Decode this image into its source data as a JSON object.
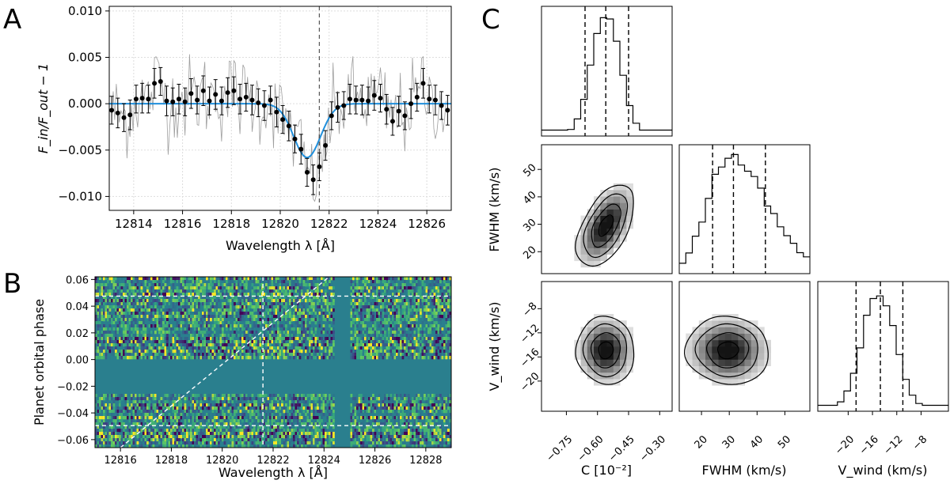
{
  "panels": {
    "a_letter": "A",
    "b_letter": "B",
    "c_letter": "C"
  },
  "colors": {
    "fit": "#1f8fdc",
    "data": "#000000",
    "raw": "#9e9e9e",
    "map_bg": "#2a7f8e",
    "contour": "#000000"
  },
  "chart_data": [
    {
      "id": "A",
      "type": "scatter",
      "xlabel": "Wavelength λ [Å]",
      "ylabel": "F_in/F_out − 1",
      "xlim": [
        12813,
        12827
      ],
      "ylim": [
        -0.0115,
        0.0105
      ],
      "xticks": [
        12814,
        12816,
        12818,
        12820,
        12822,
        12824,
        12826
      ],
      "xtick_labels": [
        "12814",
        "12816",
        "12818",
        "12820",
        "12822",
        "12824",
        "12826"
      ],
      "yticks": [
        0.01,
        0.005,
        0.0,
        -0.005,
        -0.01
      ],
      "ytick_labels": [
        "0.010",
        "0.005",
        "0.000",
        "−0.005",
        "−0.010"
      ],
      "grid": true,
      "fit": {
        "amplitude": -0.0058,
        "center": 12821.1,
        "fwhm": 1.3
      },
      "vline": 12821.6,
      "x": [
        12813.1,
        12813.35,
        12813.6,
        12813.85,
        12814.1,
        12814.35,
        12814.6,
        12814.85,
        12815.1,
        12815.35,
        12815.6,
        12815.85,
        12816.1,
        12816.35,
        12816.6,
        12816.85,
        12817.1,
        12817.35,
        12817.6,
        12817.85,
        12818.1,
        12818.35,
        12818.6,
        12818.85,
        12819.1,
        12819.35,
        12819.6,
        12819.85,
        12820.1,
        12820.35,
        12820.6,
        12820.85,
        12821.1,
        12821.35,
        12821.6,
        12821.85,
        12822.1,
        12822.35,
        12822.6,
        12822.85,
        12823.1,
        12823.35,
        12823.6,
        12823.85,
        12824.1,
        12824.35,
        12824.6,
        12824.85,
        12825.1,
        12825.35,
        12825.6,
        12825.85,
        12826.1,
        12826.35,
        12826.6,
        12826.85
      ],
      "y": [
        -0.0007,
        -0.001,
        -0.0015,
        -0.0012,
        0.0005,
        0.0006,
        0.0005,
        0.0022,
        0.0024,
        0.0003,
        0.0002,
        0.0005,
        0.0002,
        0.0011,
        0.0004,
        0.0014,
        0.0003,
        0.001,
        0.0003,
        0.0012,
        0.0014,
        0.0005,
        0.0007,
        0.0004,
        0.0001,
        -0.0002,
        0.0004,
        -0.0009,
        -0.0017,
        -0.0024,
        -0.0038,
        -0.0049,
        -0.0074,
        -0.0082,
        -0.0068,
        -0.0045,
        -0.0013,
        -0.0004,
        -0.0002,
        0.0005,
        0.0004,
        0.0004,
        0.0003,
        0.0009,
        0.0006,
        -0.0006,
        -0.0019,
        -0.0008,
        -0.0013,
        0.0,
        0.0007,
        0.0022,
        0.0005,
        0.0004,
        -0.0002,
        -0.0007
      ],
      "yerr": [
        0.0015,
        0.0016,
        0.0015,
        0.0016,
        0.0015,
        0.0016,
        0.0015,
        0.0016,
        0.0015,
        0.0016,
        0.0015,
        0.0016,
        0.0015,
        0.0016,
        0.0015,
        0.0016,
        0.0015,
        0.0016,
        0.0015,
        0.0016,
        0.0015,
        0.0016,
        0.0015,
        0.0016,
        0.0015,
        0.0016,
        0.0015,
        0.0016,
        0.0015,
        0.0016,
        0.0015,
        0.0016,
        0.0015,
        0.0016,
        0.0015,
        0.0016,
        0.0015,
        0.0016,
        0.0015,
        0.0016,
        0.0015,
        0.0016,
        0.0015,
        0.0016,
        0.0015,
        0.0016,
        0.0015,
        0.0016,
        0.0015,
        0.0016,
        0.0015,
        0.0016,
        0.0015,
        0.0016,
        0.0015,
        0.0016
      ]
    },
    {
      "id": "B",
      "type": "heatmap",
      "xlabel": "Wavelength λ [Å]",
      "ylabel": "Planet orbital phase",
      "xlim": [
        12815,
        12829
      ],
      "ylim": [
        -0.066,
        0.062
      ],
      "xticks": [
        12816,
        12818,
        12820,
        12822,
        12824,
        12826,
        12828
      ],
      "xtick_labels": [
        "12816",
        "12818",
        "12820",
        "12822",
        "12824",
        "12826",
        "12828"
      ],
      "yticks": [
        0.06,
        0.04,
        0.02,
        0.0,
        -0.02,
        -0.04,
        -0.06
      ],
      "ytick_labels": [
        "0.06",
        "0.04",
        "0.02",
        "0.00",
        "−0.02",
        "−0.04",
        "−0.06"
      ],
      "hlines": [
        0.0475,
        -0.0495
      ],
      "vline": 12821.6,
      "diagonal": [
        [
          12816.0,
          -0.066
        ],
        [
          12824.2,
          0.062
        ]
      ],
      "masked_phase_range": [
        -0.026,
        0.0
      ],
      "masked_wavelength_range": [
        12824.4,
        12825.0
      ]
    },
    {
      "id": "C",
      "type": "corner",
      "parameters": [
        "C [10^-2]",
        "FWHM (km/s)",
        "V_wind (km/s)"
      ],
      "x_axis_labels": [
        "C [10⁻²]",
        "FWHM (km/s)",
        "V_wind (km/s)"
      ],
      "y_axis_labels": [
        "FWHM (km/s)",
        "V_wind (km/s)"
      ],
      "ranges": [
        [
          -0.87,
          -0.24
        ],
        [
          12,
          59
        ],
        [
          -25,
          -3.5
        ]
      ],
      "ticks": [
        [
          -0.75,
          -0.6,
          -0.45,
          -0.3
        ],
        [
          20,
          30,
          40,
          50
        ],
        [
          -20,
          -16,
          -12,
          -8
        ]
      ],
      "tick_labels": [
        [
          "−0.75",
          "−0.60",
          "−0.45",
          "−0.30"
        ],
        [
          "20",
          "30",
          "40",
          "50"
        ],
        [
          "−20",
          "−16",
          "−12",
          "−8"
        ]
      ],
      "y_tick_labels": {
        "fwhm": [
          "20",
          "30",
          "40",
          "50"
        ],
        "vwind": [
          "−20",
          "−16",
          "−12",
          "−8"
        ]
      },
      "quantiles": {
        "C": [
          -0.66,
          -0.56,
          -0.45
        ],
        "FWHM": [
          24,
          31.5,
          43
        ],
        "V_wind": [
          -18.7,
          -14.7,
          -11.0
        ]
      },
      "means": {
        "C": -0.56,
        "FWHM": 29.5,
        "V_wind": -14.9
      },
      "sigmas": {
        "C": 0.07,
        "FWHM": 7.5,
        "V_wind": 2.8
      }
    }
  ]
}
